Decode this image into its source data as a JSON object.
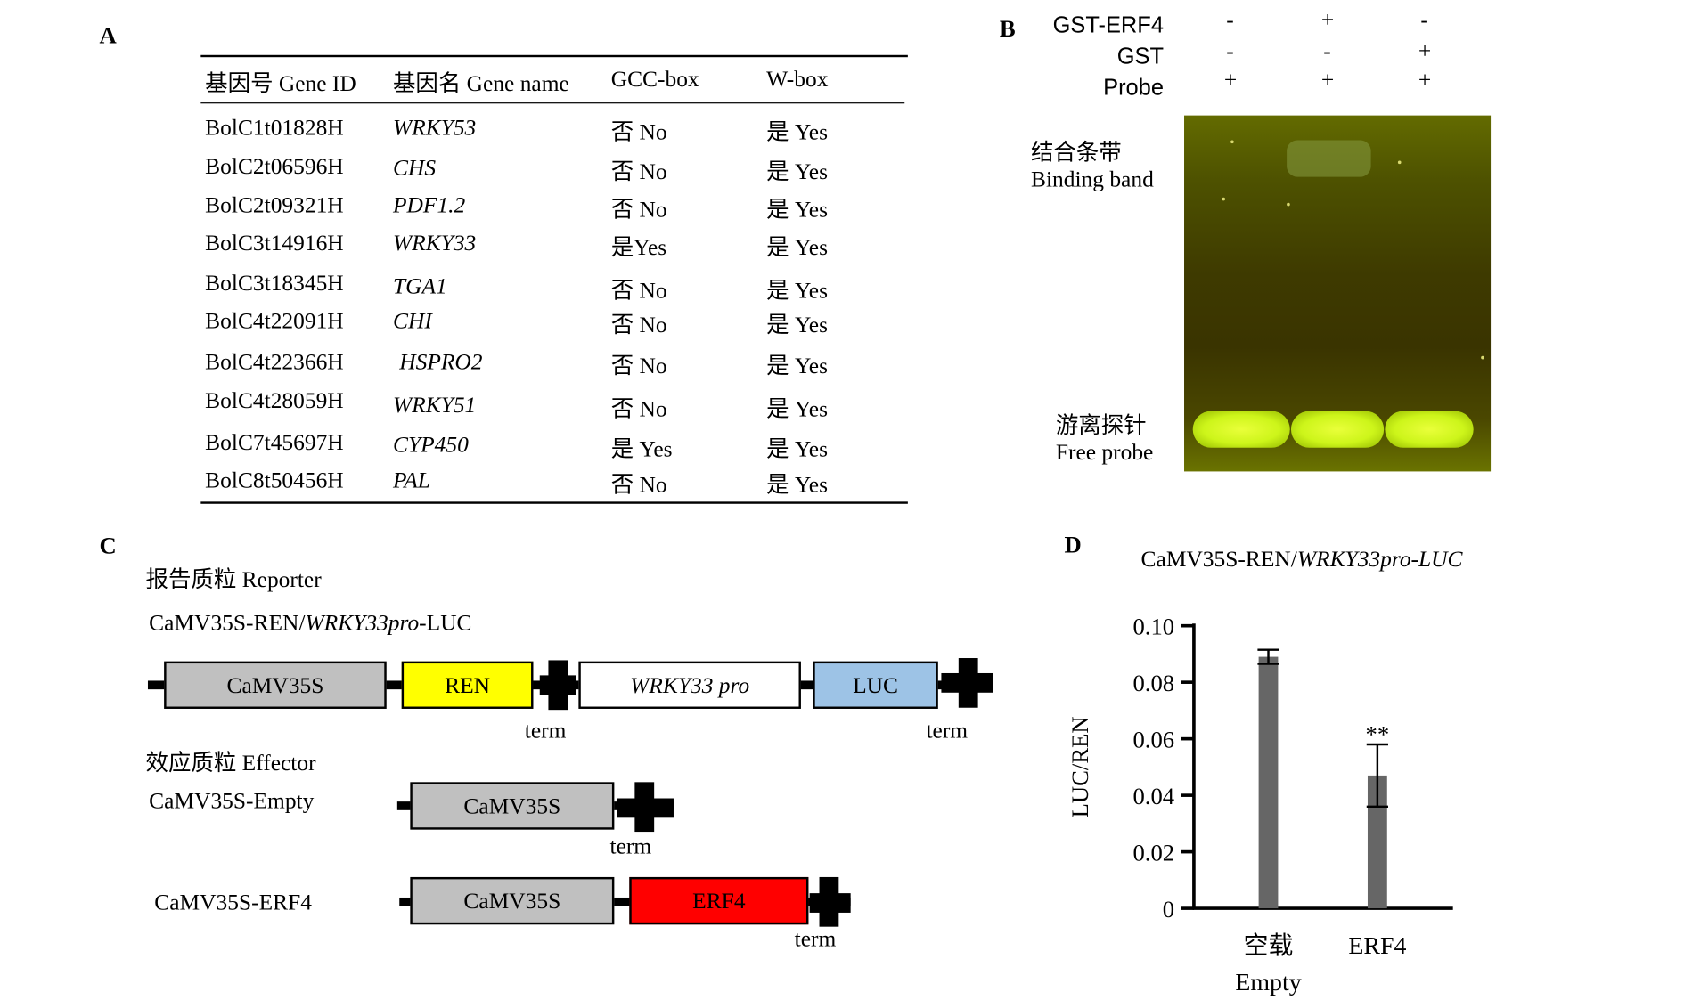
{
  "panel_a": {
    "letter": "A",
    "headers": [
      "基因号 Gene ID",
      "基因名 Gene name",
      "GCC-box",
      "W-box"
    ],
    "rows": [
      {
        "id": "BolC1t01828H",
        "name": "WRKY53",
        "gcc": "否 No",
        "wbox": "是 Yes"
      },
      {
        "id": "BolC2t06596H",
        "name": "CHS",
        "gcc": "否 No",
        "wbox": "是 Yes"
      },
      {
        "id": "BolC2t09321H",
        "name": "PDF1.2",
        "gcc": "否 No",
        "wbox": "是 Yes"
      },
      {
        "id": "BolC3t14916H",
        "name": "WRKY33",
        "gcc": "是Yes",
        "wbox": "是 Yes"
      },
      {
        "id": "BolC3t18345H",
        "name": "TGA1",
        "gcc": "否 No",
        "wbox": "是 Yes"
      },
      {
        "id": "BolC4t22091H",
        "name": "CHI",
        "gcc": "否 No",
        "wbox": "是 Yes"
      },
      {
        "id": "BolC4t22366H",
        "name": "HSPRO2",
        "gcc": "否 No",
        "wbox": "是 Yes"
      },
      {
        "id": "BolC4t28059H",
        "name": "WRKY51",
        "gcc": "否 No",
        "wbox": "是 Yes"
      },
      {
        "id": "BolC7t45697H",
        "name": "CYP450",
        "gcc": "是 Yes",
        "wbox": "是 Yes"
      },
      {
        "id": "BolC8t50456H",
        "name": "PAL",
        "gcc": "否 No",
        "wbox": "是 Yes"
      }
    ]
  },
  "panel_b": {
    "letter": "B",
    "row_labels": [
      "GST-ERF4",
      "GST",
      "Probe"
    ],
    "lanes": [
      [
        "-",
        "+",
        "-"
      ],
      [
        "-",
        "-",
        "+"
      ],
      [
        "+",
        "+",
        "+"
      ]
    ],
    "binding_band_cn": "结合条带",
    "binding_band_en": "Binding band",
    "free_probe_cn": "游离探针",
    "free_probe_en": "Free probe",
    "colors": {
      "gel": "#3e3a00",
      "band": "#d4f71e"
    }
  },
  "panel_c": {
    "letter": "C",
    "reporter_title": "报告质粒 Reporter",
    "reporter_name_prefix": "CaMV35S-REN/",
    "reporter_name_italic": "WRKY33pro",
    "reporter_name_suffix": "-LUC",
    "reporter_boxes": [
      "CaMV35S",
      "REN",
      "WRKY33 pro",
      "LUC"
    ],
    "term": "term",
    "effector_title": "效应质粒 Effector",
    "effector_empty_name": "CaMV35S-Empty",
    "effector_empty_box": "CaMV35S",
    "effector_erf_name": "CaMV35S-ERF4",
    "effector_erf_boxes": [
      "CaMV35S",
      "ERF4"
    ],
    "colors": {
      "camv": "#c0c0c0",
      "ren": "#ffff00",
      "luc": "#9dc3e6",
      "erf4": "#ff0000"
    }
  },
  "panel_d": {
    "letter": "D",
    "significance": "**"
  },
  "chart_data": {
    "type": "bar",
    "title_prefix": "CaMV35S-REN/",
    "title_italic": "WRKY33pro-LUC",
    "ylabel": "LUC/REN",
    "categories": [
      {
        "cn": "空载",
        "en": "Empty"
      },
      {
        "cn": "ERF4",
        "en": ""
      }
    ],
    "values": [
      0.089,
      0.047
    ],
    "errors": [
      0.0025,
      0.011
    ],
    "ylim": [
      0,
      0.1
    ],
    "yticks": [
      {
        "value": 0,
        "label": "0"
      },
      {
        "value": 0.02,
        "label": "0.02"
      },
      {
        "value": 0.04,
        "label": "0.04"
      },
      {
        "value": 0.06,
        "label": "0.06"
      },
      {
        "value": 0.08,
        "label": "0.08"
      },
      {
        "value": 0.1,
        "label": "0.10"
      }
    ],
    "bar_color": "#666666",
    "grid": false
  }
}
